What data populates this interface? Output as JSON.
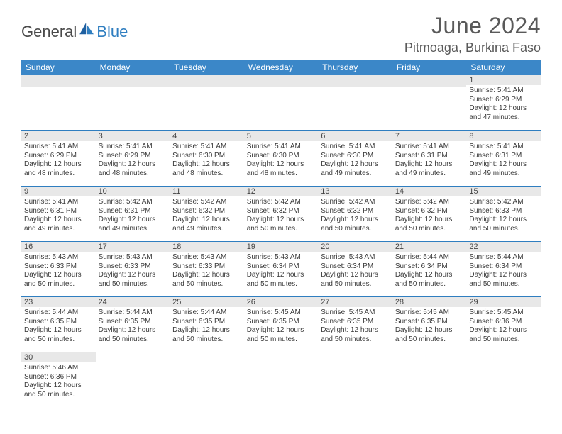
{
  "logo": {
    "text1": "General",
    "text2": "Blue"
  },
  "title": "June 2024",
  "location": "Pitmoaga, Burkina Faso",
  "colors": {
    "header_bg": "#3b87c8",
    "header_text": "#ffffff",
    "daybar_bg": "#e8e8e8",
    "border": "#2f7ec0",
    "body_text": "#3a3a3a",
    "title_text": "#5a5a5a"
  },
  "weekdays": [
    "Sunday",
    "Monday",
    "Tuesday",
    "Wednesday",
    "Thursday",
    "Friday",
    "Saturday"
  ],
  "weeks": [
    [
      null,
      null,
      null,
      null,
      null,
      null,
      {
        "n": "1",
        "sunrise": "Sunrise: 5:41 AM",
        "sunset": "Sunset: 6:29 PM",
        "day1": "Daylight: 12 hours",
        "day2": "and 47 minutes."
      }
    ],
    [
      {
        "n": "2",
        "sunrise": "Sunrise: 5:41 AM",
        "sunset": "Sunset: 6:29 PM",
        "day1": "Daylight: 12 hours",
        "day2": "and 48 minutes."
      },
      {
        "n": "3",
        "sunrise": "Sunrise: 5:41 AM",
        "sunset": "Sunset: 6:29 PM",
        "day1": "Daylight: 12 hours",
        "day2": "and 48 minutes."
      },
      {
        "n": "4",
        "sunrise": "Sunrise: 5:41 AM",
        "sunset": "Sunset: 6:30 PM",
        "day1": "Daylight: 12 hours",
        "day2": "and 48 minutes."
      },
      {
        "n": "5",
        "sunrise": "Sunrise: 5:41 AM",
        "sunset": "Sunset: 6:30 PM",
        "day1": "Daylight: 12 hours",
        "day2": "and 48 minutes."
      },
      {
        "n": "6",
        "sunrise": "Sunrise: 5:41 AM",
        "sunset": "Sunset: 6:30 PM",
        "day1": "Daylight: 12 hours",
        "day2": "and 49 minutes."
      },
      {
        "n": "7",
        "sunrise": "Sunrise: 5:41 AM",
        "sunset": "Sunset: 6:31 PM",
        "day1": "Daylight: 12 hours",
        "day2": "and 49 minutes."
      },
      {
        "n": "8",
        "sunrise": "Sunrise: 5:41 AM",
        "sunset": "Sunset: 6:31 PM",
        "day1": "Daylight: 12 hours",
        "day2": "and 49 minutes."
      }
    ],
    [
      {
        "n": "9",
        "sunrise": "Sunrise: 5:41 AM",
        "sunset": "Sunset: 6:31 PM",
        "day1": "Daylight: 12 hours",
        "day2": "and 49 minutes."
      },
      {
        "n": "10",
        "sunrise": "Sunrise: 5:42 AM",
        "sunset": "Sunset: 6:31 PM",
        "day1": "Daylight: 12 hours",
        "day2": "and 49 minutes."
      },
      {
        "n": "11",
        "sunrise": "Sunrise: 5:42 AM",
        "sunset": "Sunset: 6:32 PM",
        "day1": "Daylight: 12 hours",
        "day2": "and 49 minutes."
      },
      {
        "n": "12",
        "sunrise": "Sunrise: 5:42 AM",
        "sunset": "Sunset: 6:32 PM",
        "day1": "Daylight: 12 hours",
        "day2": "and 50 minutes."
      },
      {
        "n": "13",
        "sunrise": "Sunrise: 5:42 AM",
        "sunset": "Sunset: 6:32 PM",
        "day1": "Daylight: 12 hours",
        "day2": "and 50 minutes."
      },
      {
        "n": "14",
        "sunrise": "Sunrise: 5:42 AM",
        "sunset": "Sunset: 6:32 PM",
        "day1": "Daylight: 12 hours",
        "day2": "and 50 minutes."
      },
      {
        "n": "15",
        "sunrise": "Sunrise: 5:42 AM",
        "sunset": "Sunset: 6:33 PM",
        "day1": "Daylight: 12 hours",
        "day2": "and 50 minutes."
      }
    ],
    [
      {
        "n": "16",
        "sunrise": "Sunrise: 5:43 AM",
        "sunset": "Sunset: 6:33 PM",
        "day1": "Daylight: 12 hours",
        "day2": "and 50 minutes."
      },
      {
        "n": "17",
        "sunrise": "Sunrise: 5:43 AM",
        "sunset": "Sunset: 6:33 PM",
        "day1": "Daylight: 12 hours",
        "day2": "and 50 minutes."
      },
      {
        "n": "18",
        "sunrise": "Sunrise: 5:43 AM",
        "sunset": "Sunset: 6:33 PM",
        "day1": "Daylight: 12 hours",
        "day2": "and 50 minutes."
      },
      {
        "n": "19",
        "sunrise": "Sunrise: 5:43 AM",
        "sunset": "Sunset: 6:34 PM",
        "day1": "Daylight: 12 hours",
        "day2": "and 50 minutes."
      },
      {
        "n": "20",
        "sunrise": "Sunrise: 5:43 AM",
        "sunset": "Sunset: 6:34 PM",
        "day1": "Daylight: 12 hours",
        "day2": "and 50 minutes."
      },
      {
        "n": "21",
        "sunrise": "Sunrise: 5:44 AM",
        "sunset": "Sunset: 6:34 PM",
        "day1": "Daylight: 12 hours",
        "day2": "and 50 minutes."
      },
      {
        "n": "22",
        "sunrise": "Sunrise: 5:44 AM",
        "sunset": "Sunset: 6:34 PM",
        "day1": "Daylight: 12 hours",
        "day2": "and 50 minutes."
      }
    ],
    [
      {
        "n": "23",
        "sunrise": "Sunrise: 5:44 AM",
        "sunset": "Sunset: 6:35 PM",
        "day1": "Daylight: 12 hours",
        "day2": "and 50 minutes."
      },
      {
        "n": "24",
        "sunrise": "Sunrise: 5:44 AM",
        "sunset": "Sunset: 6:35 PM",
        "day1": "Daylight: 12 hours",
        "day2": "and 50 minutes."
      },
      {
        "n": "25",
        "sunrise": "Sunrise: 5:44 AM",
        "sunset": "Sunset: 6:35 PM",
        "day1": "Daylight: 12 hours",
        "day2": "and 50 minutes."
      },
      {
        "n": "26",
        "sunrise": "Sunrise: 5:45 AM",
        "sunset": "Sunset: 6:35 PM",
        "day1": "Daylight: 12 hours",
        "day2": "and 50 minutes."
      },
      {
        "n": "27",
        "sunrise": "Sunrise: 5:45 AM",
        "sunset": "Sunset: 6:35 PM",
        "day1": "Daylight: 12 hours",
        "day2": "and 50 minutes."
      },
      {
        "n": "28",
        "sunrise": "Sunrise: 5:45 AM",
        "sunset": "Sunset: 6:35 PM",
        "day1": "Daylight: 12 hours",
        "day2": "and 50 minutes."
      },
      {
        "n": "29",
        "sunrise": "Sunrise: 5:45 AM",
        "sunset": "Sunset: 6:36 PM",
        "day1": "Daylight: 12 hours",
        "day2": "and 50 minutes."
      }
    ],
    [
      {
        "n": "30",
        "sunrise": "Sunrise: 5:46 AM",
        "sunset": "Sunset: 6:36 PM",
        "day1": "Daylight: 12 hours",
        "day2": "and 50 minutes."
      },
      null,
      null,
      null,
      null,
      null,
      null
    ]
  ]
}
